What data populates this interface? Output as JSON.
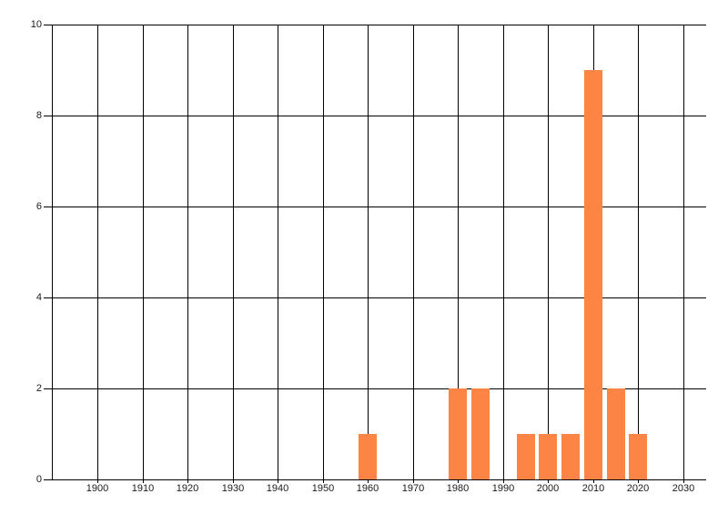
{
  "chart_data": {
    "type": "bar",
    "title": "",
    "xlabel": "",
    "ylabel": "",
    "x": [
      1960,
      1980,
      1985,
      1995,
      2000,
      2005,
      2010,
      2015,
      2020
    ],
    "values": [
      1,
      2,
      2,
      1,
      1,
      1,
      9,
      2,
      1
    ],
    "bar_width_years": 4,
    "xlim": [
      1889.8,
      2035.1
    ],
    "ylim": [
      0,
      10
    ],
    "xticks": [
      1900,
      1910,
      1920,
      1930,
      1940,
      1950,
      1960,
      1970,
      1980,
      1990,
      2000,
      2010,
      2020,
      2030
    ],
    "yticks": [
      0,
      2,
      4,
      6,
      8,
      10
    ],
    "grid": "full-grid-both-axes",
    "legend": "none",
    "colors": {
      "bar": "#fc8444",
      "grid": "#000000",
      "tick_label": "#1a1a1a",
      "background": "#ffffff"
    }
  }
}
